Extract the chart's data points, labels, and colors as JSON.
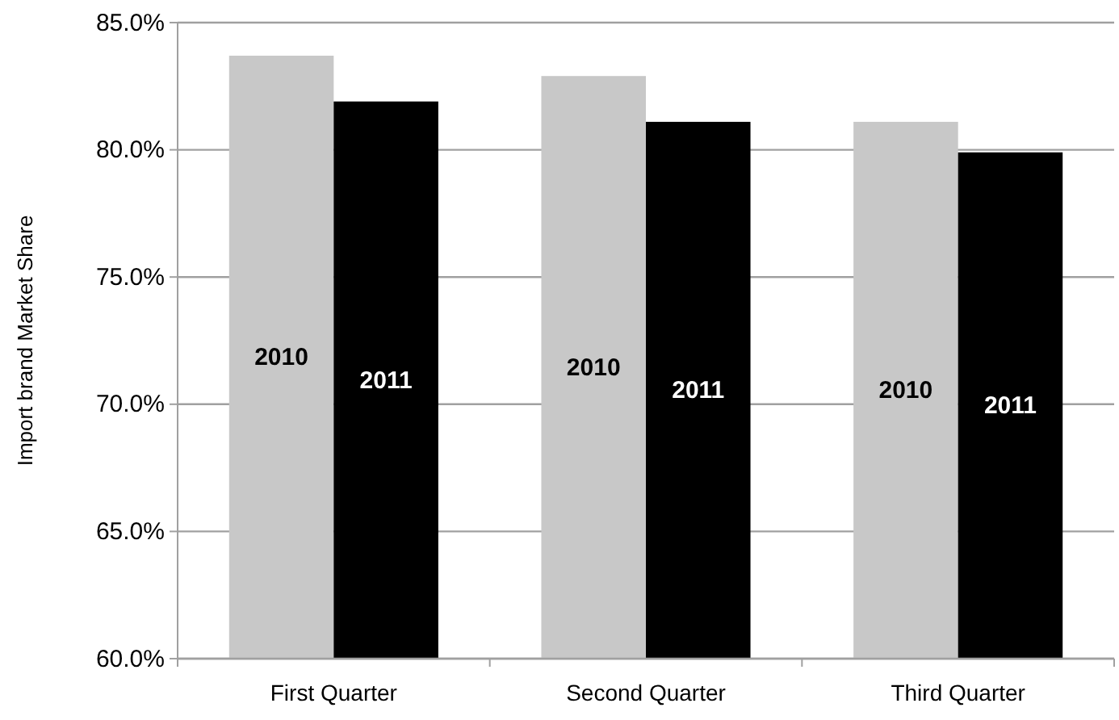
{
  "chart_data": {
    "type": "bar",
    "ylabel": "Import brand Market Share",
    "categories": [
      "First Quarter",
      "Second Quarter",
      "Third Quarter"
    ],
    "series": [
      {
        "name": "2010",
        "color": "#c8c8c8",
        "values": [
          83.7,
          82.9,
          81.1
        ]
      },
      {
        "name": "2011",
        "color": "#000000",
        "values": [
          81.9,
          81.1,
          79.9
        ]
      }
    ],
    "ylim": [
      60,
      85
    ],
    "yticks": [
      {
        "value": 60,
        "label": "60.0%"
      },
      {
        "value": 65,
        "label": "65.0%"
      },
      {
        "value": 70,
        "label": "70.0%"
      },
      {
        "value": 75,
        "label": "75.0%"
      },
      {
        "value": 80,
        "label": "80.0%"
      },
      {
        "value": 85,
        "label": "85.0%"
      }
    ],
    "grid": "y"
  }
}
